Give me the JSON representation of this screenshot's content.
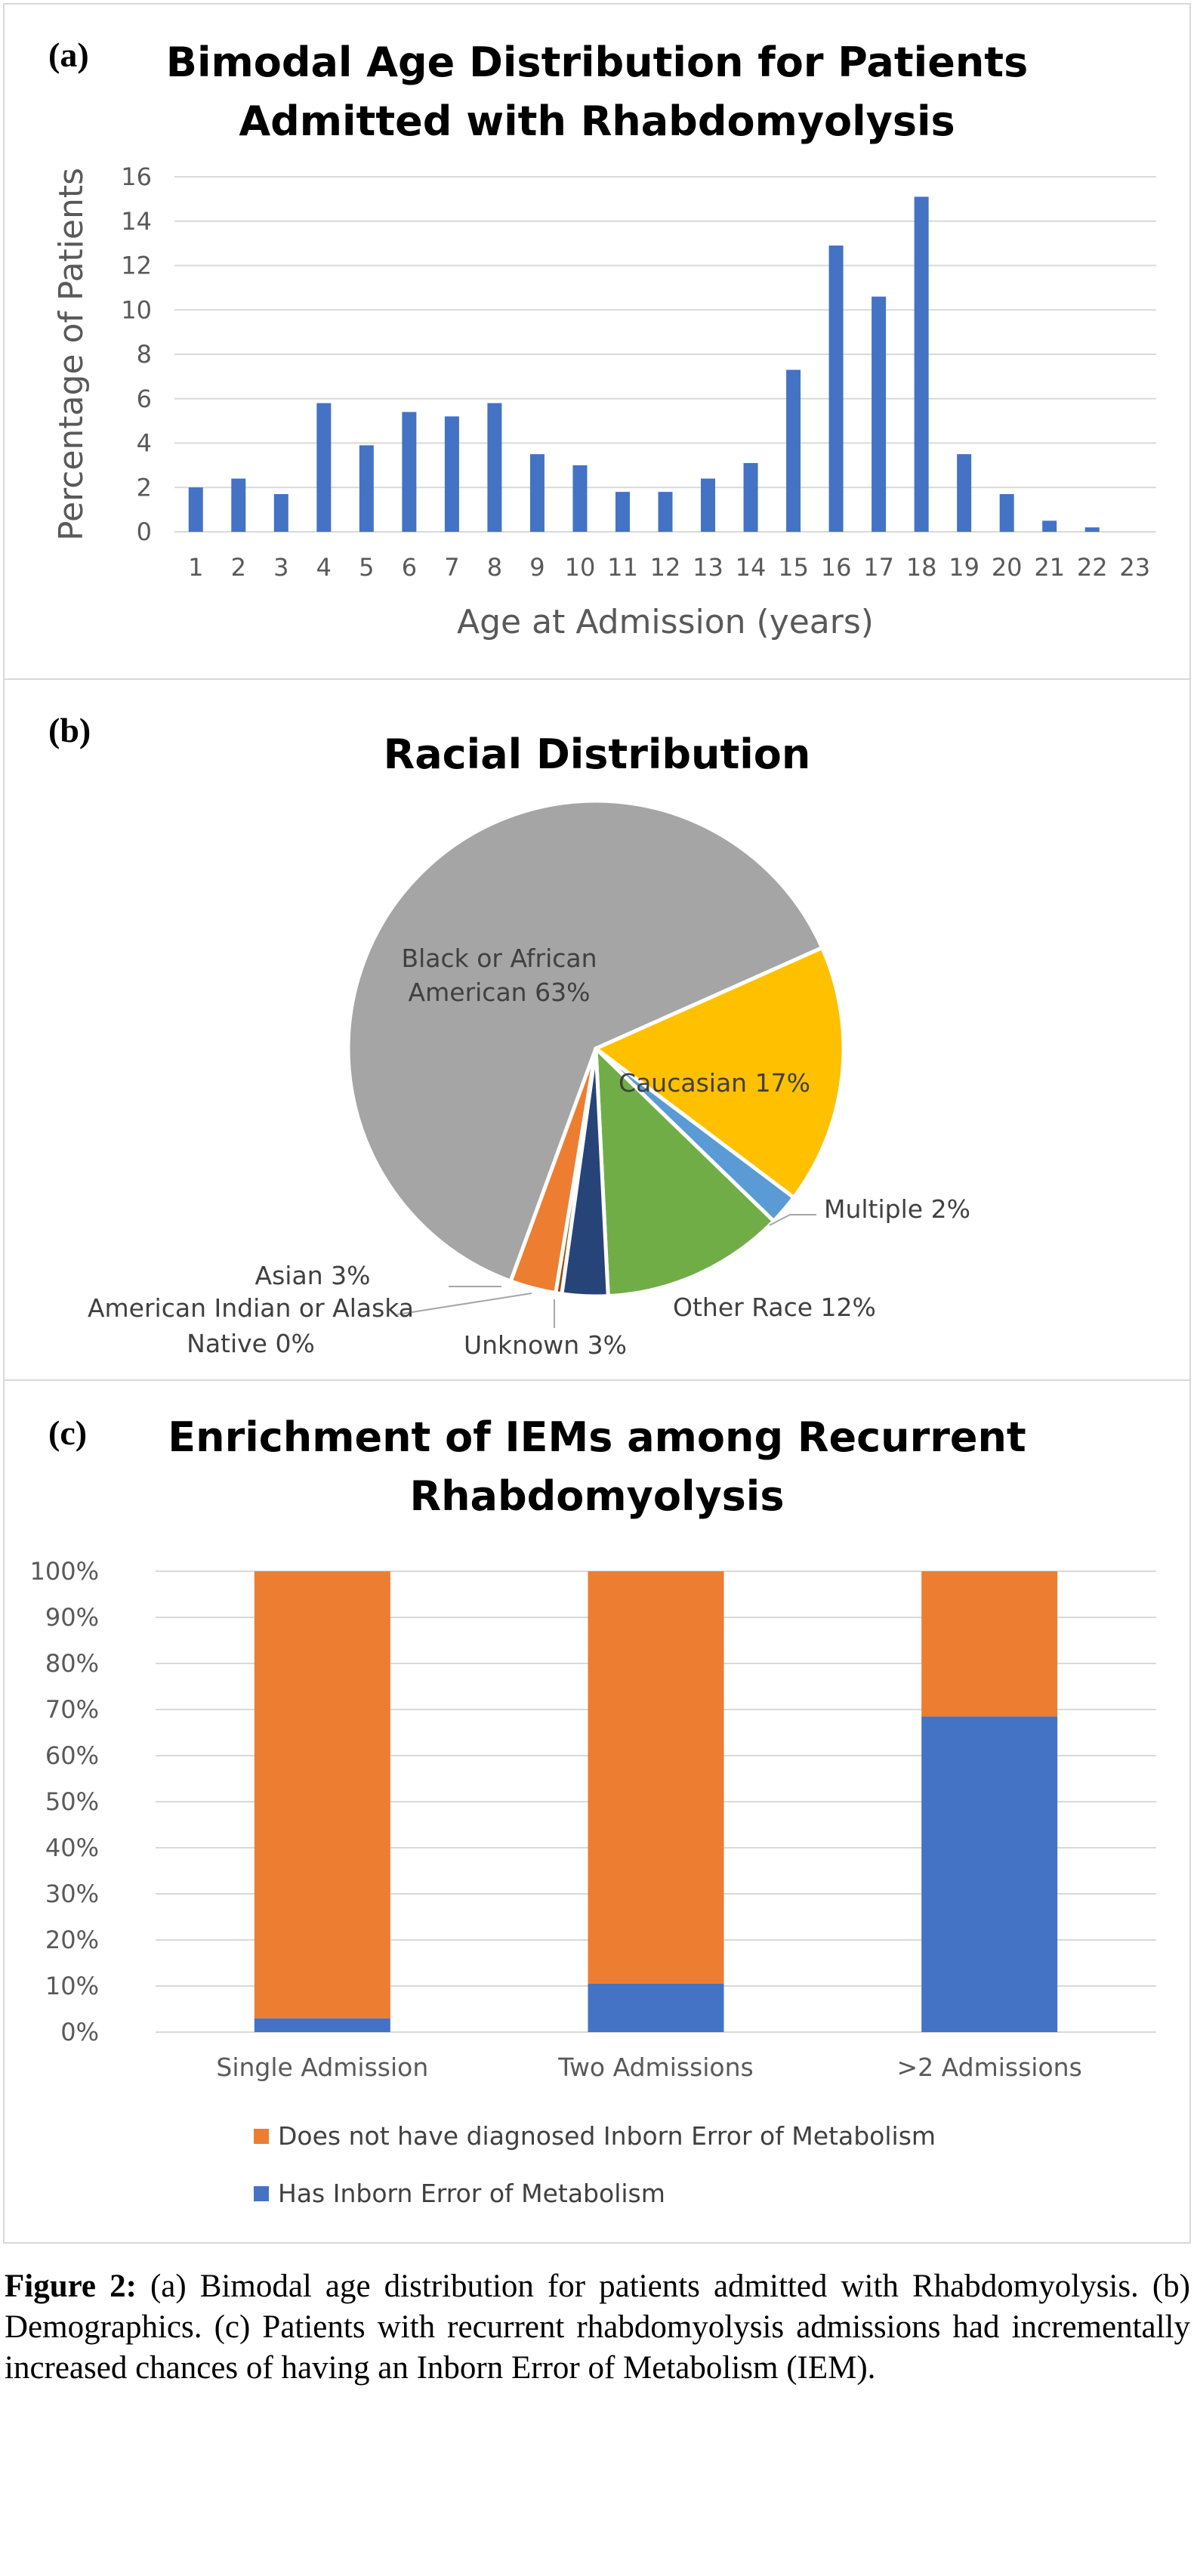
{
  "panels": {
    "a_letter": "(a)",
    "b_letter": "(b)",
    "c_letter": "(c)"
  },
  "caption": {
    "label": "Figure 2:",
    "text": " (a) Bimodal age distribution for patients admitted with Rhabdomyolysis.   (b) Demographics.   (c) Patients with recurrent rhabdomyolysis admissions had incrementally increased chances of having an Inborn Error of Metabolism (IEM)."
  },
  "chart_data": [
    {
      "type": "bar",
      "title_line1": "Bimodal Age Distribution for Patients",
      "title_line2": "Admitted with Rhabdomyolysis",
      "xlabel": "Age at Admission (years)",
      "ylabel": "Percentage of Patients",
      "categories": [
        "1",
        "2",
        "3",
        "4",
        "5",
        "6",
        "7",
        "8",
        "9",
        "10",
        "11",
        "12",
        "13",
        "14",
        "15",
        "16",
        "17",
        "18",
        "19",
        "20",
        "21",
        "22",
        "23"
      ],
      "values": [
        2.0,
        2.4,
        1.7,
        5.8,
        3.9,
        5.4,
        5.2,
        5.8,
        3.5,
        3.0,
        1.8,
        1.8,
        2.4,
        3.1,
        7.3,
        12.9,
        10.6,
        15.1,
        3.5,
        1.7,
        0.5,
        0.2,
        0
      ],
      "yticks": [
        "0",
        "2",
        "4",
        "6",
        "8",
        "10",
        "12",
        "14",
        "16"
      ],
      "ylim": [
        0,
        16
      ],
      "grid": true,
      "color": "#4472C4"
    },
    {
      "type": "pie",
      "title": "Racial Distribution",
      "slices": [
        {
          "label": "Black or African American 63%",
          "value": 63,
          "color": "#A5A5A5"
        },
        {
          "label": "Caucasian 17%",
          "value": 17,
          "color": "#FFC000"
        },
        {
          "label": "Multiple 2%",
          "value": 2,
          "color": "#5B9BD5"
        },
        {
          "label": "Other Race 12%",
          "value": 12,
          "color": "#70AD47"
        },
        {
          "label": "Unknown 3%",
          "value": 3,
          "color": "#264478"
        },
        {
          "label": "American Indian or Alaska Native 0%",
          "value": 0.4,
          "color": "#9E480E"
        },
        {
          "label": "Asian 3%",
          "value": 3,
          "color": "#ED7D31"
        }
      ],
      "label_black_1": "Black or African",
      "label_black_2": "American 63%",
      "label_caucasian": "Caucasian 17%",
      "label_multiple": "Multiple 2%",
      "label_other": "Other Race 12%",
      "label_unknown": "Unknown 3%",
      "label_aian_1": "American Indian or Alaska",
      "label_aian_2": "Native 0%",
      "label_asian": "Asian 3%"
    },
    {
      "type": "bar",
      "stacked": true,
      "percent": true,
      "title_line1": "Enrichment of IEMs among Recurrent",
      "title_line2": "Rhabdomyolysis",
      "categories": [
        "Single Admission",
        "Two Admissions",
        ">2 Admissions"
      ],
      "series": [
        {
          "name": "Has Inborn Error of Metabolism",
          "values": [
            3,
            10.5,
            68.5
          ],
          "color": "#4472C4"
        },
        {
          "name": "Does not have diagnosed Inborn Error of Metabolism",
          "values": [
            97,
            89.5,
            31.5
          ],
          "color": "#ED7D31"
        }
      ],
      "yticks": [
        "0%",
        "10%",
        "20%",
        "30%",
        "40%",
        "50%",
        "60%",
        "70%",
        "80%",
        "90%",
        "100%"
      ],
      "ylim": [
        0,
        100
      ],
      "grid": true,
      "legend_position": "bottom"
    }
  ]
}
